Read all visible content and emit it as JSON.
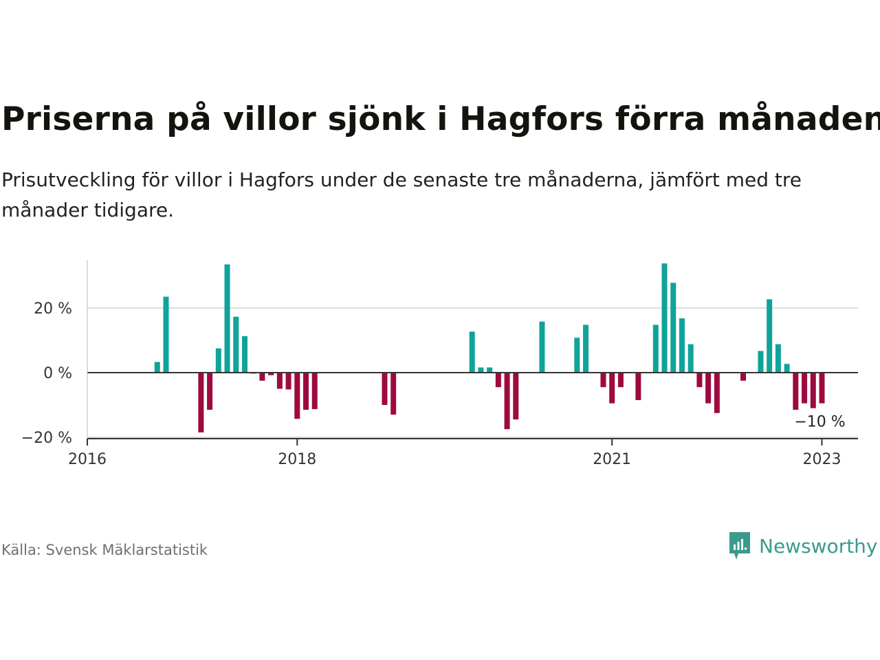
{
  "title": "Priserna på villor sjönk i Hagfors förra månaden",
  "subtitle": "Prisutveckling för villor i Hagfors under de senaste tre månaderna, jämfört med tre månader tidigare.",
  "source": "Källa: Svensk Mäklarstatistik",
  "brand": "Newsworthy",
  "colors": {
    "positive": "#0fa39a",
    "negative": "#9e0a3f",
    "brand": "#3a9a8c",
    "grid": "#dddddd",
    "axis": "#333333"
  },
  "chart_data": {
    "type": "bar",
    "ylim": [
      -20,
      33
    ],
    "y_ticks": [
      {
        "value": 20,
        "label": "20 %"
      },
      {
        "value": 0,
        "label": "0 %"
      },
      {
        "value": -20,
        "label": "−20 %"
      }
    ],
    "x_ticks": [
      {
        "x": "2016-01",
        "label": "2016"
      },
      {
        "x": "2018-01",
        "label": "2018"
      },
      {
        "x": "2021-01",
        "label": "2021"
      },
      {
        "x": "2023-01",
        "label": "2023"
      }
    ],
    "grid": true,
    "annotation": {
      "x": "2023-01",
      "text": "−10 %"
    },
    "series": [
      {
        "points": [
          {
            "x": "2016-09",
            "value": 3.3
          },
          {
            "x": "2016-10",
            "value": 23.5
          },
          {
            "x": "2017-02",
            "value": -18.5
          },
          {
            "x": "2017-03",
            "value": -11.5
          },
          {
            "x": "2017-04",
            "value": 7.5
          },
          {
            "x": "2017-05",
            "value": 33.5
          },
          {
            "x": "2017-06",
            "value": 17.3
          },
          {
            "x": "2017-07",
            "value": 11.3
          },
          {
            "x": "2017-08",
            "value": -0.3
          },
          {
            "x": "2017-09",
            "value": -2.5
          },
          {
            "x": "2017-10",
            "value": -0.8
          },
          {
            "x": "2017-11",
            "value": -5.0
          },
          {
            "x": "2017-12",
            "value": -5.2
          },
          {
            "x": "2018-01",
            "value": -14.3
          },
          {
            "x": "2018-02",
            "value": -11.5
          },
          {
            "x": "2018-03",
            "value": -11.3
          },
          {
            "x": "2018-11",
            "value": -10.0
          },
          {
            "x": "2018-12",
            "value": -13.0
          },
          {
            "x": "2019-09",
            "value": 12.7
          },
          {
            "x": "2019-10",
            "value": 1.6
          },
          {
            "x": "2019-11",
            "value": 1.6
          },
          {
            "x": "2019-12",
            "value": -4.5
          },
          {
            "x": "2020-01",
            "value": -17.5
          },
          {
            "x": "2020-02",
            "value": -14.5
          },
          {
            "x": "2020-05",
            "value": 15.8
          },
          {
            "x": "2020-09",
            "value": 10.8
          },
          {
            "x": "2020-10",
            "value": 14.8
          },
          {
            "x": "2020-12",
            "value": -4.5
          },
          {
            "x": "2021-01",
            "value": -9.5
          },
          {
            "x": "2021-02",
            "value": -4.5
          },
          {
            "x": "2021-04",
            "value": -8.5
          },
          {
            "x": "2021-06",
            "value": 14.8
          },
          {
            "x": "2021-07",
            "value": 33.8
          },
          {
            "x": "2021-08",
            "value": 27.8
          },
          {
            "x": "2021-09",
            "value": 16.8
          },
          {
            "x": "2021-10",
            "value": 8.8
          },
          {
            "x": "2021-11",
            "value": -4.5
          },
          {
            "x": "2021-12",
            "value": -9.5
          },
          {
            "x": "2022-01",
            "value": -12.5
          },
          {
            "x": "2022-04",
            "value": -2.5
          },
          {
            "x": "2022-06",
            "value": 6.7
          },
          {
            "x": "2022-07",
            "value": 22.7
          },
          {
            "x": "2022-08",
            "value": 8.8
          },
          {
            "x": "2022-09",
            "value": 2.7
          },
          {
            "x": "2022-10",
            "value": -11.5
          },
          {
            "x": "2022-11",
            "value": -9.5
          },
          {
            "x": "2022-12",
            "value": -11.0
          },
          {
            "x": "2023-01",
            "value": -9.5
          }
        ]
      }
    ]
  }
}
